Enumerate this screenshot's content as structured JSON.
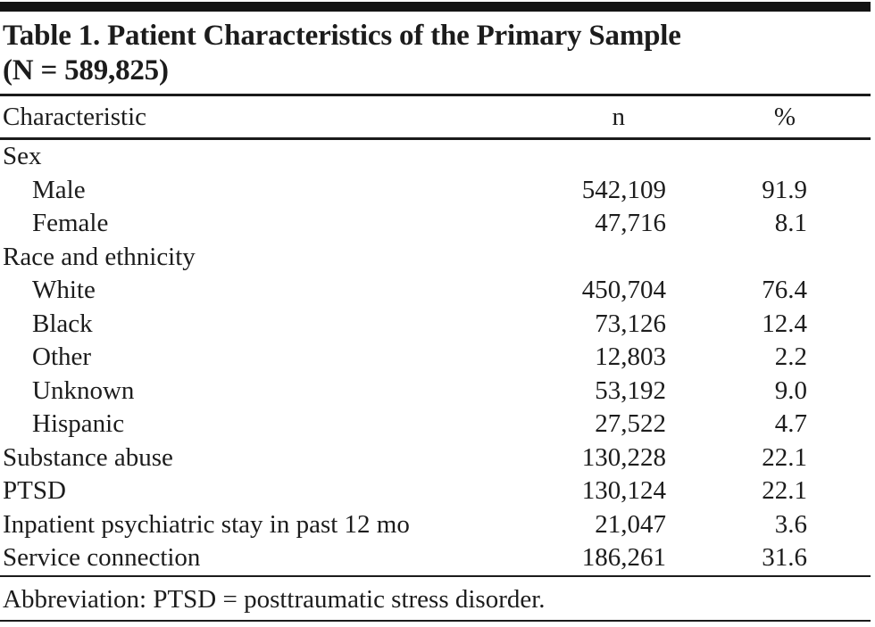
{
  "title": {
    "line1": "Table 1. Patient Characteristics of the Primary Sample",
    "line2": "(N = 589,825)"
  },
  "columns": {
    "characteristic": "Characteristic",
    "n": "n",
    "pct": "%"
  },
  "rows": [
    {
      "label": "Sex",
      "indent": 0,
      "n": "",
      "pct": ""
    },
    {
      "label": "Male",
      "indent": 1,
      "n": "542,109",
      "pct": "91.9"
    },
    {
      "label": "Female",
      "indent": 1,
      "n": "47,716",
      "pct": "8.1"
    },
    {
      "label": "Race and ethnicity",
      "indent": 0,
      "n": "",
      "pct": ""
    },
    {
      "label": "White",
      "indent": 1,
      "n": "450,704",
      "pct": "76.4"
    },
    {
      "label": "Black",
      "indent": 1,
      "n": "73,126",
      "pct": "12.4"
    },
    {
      "label": "Other",
      "indent": 1,
      "n": "12,803",
      "pct": "2.2"
    },
    {
      "label": "Unknown",
      "indent": 1,
      "n": "53,192",
      "pct": "9.0"
    },
    {
      "label": "Hispanic",
      "indent": 1,
      "n": "27,522",
      "pct": "4.7"
    },
    {
      "label": "Substance abuse",
      "indent": 0,
      "n": "130,228",
      "pct": "22.1"
    },
    {
      "label": "PTSD",
      "indent": 0,
      "n": "130,124",
      "pct": "22.1"
    },
    {
      "label": "Inpatient psychiatric stay in past 12 mo",
      "indent": 0,
      "n": "21,047",
      "pct": "3.6"
    },
    {
      "label": "Service connection",
      "indent": 0,
      "n": "186,261",
      "pct": "31.6"
    }
  ],
  "footnote": "Abbreviation: PTSD = posttraumatic stress disorder.",
  "colors": {
    "text": "#1c1c1c",
    "rule": "#1b1b1b",
    "top_bar": "#141414",
    "background": "#ffffff"
  }
}
